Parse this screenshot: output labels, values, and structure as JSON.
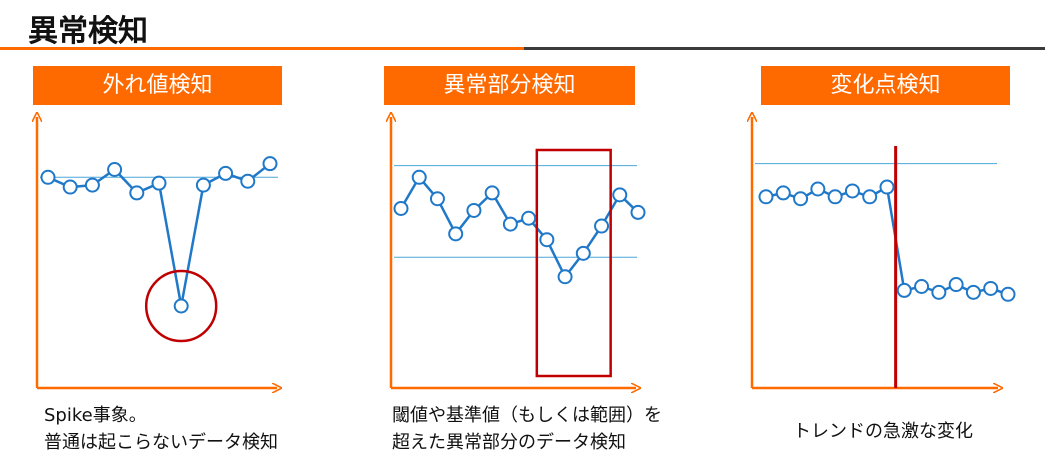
{
  "page": {
    "title": "異常検知",
    "accent_color": "#FF6A00",
    "rule_dark_color": "#3B3B3B"
  },
  "panels": [
    {
      "id": "outlier",
      "header": "外れ値検知",
      "caption_lines": [
        "Spike事象。",
        "普通は起こらないデータ検知"
      ],
      "highlight": "circle"
    },
    {
      "id": "range",
      "header": "異常部分検知",
      "caption_lines": [
        "閾値や基準値（もしくは範囲）を",
        "超えた異常部分のデータ検知"
      ],
      "highlight": "rectangle"
    },
    {
      "id": "changepoint",
      "header": "変化点検知",
      "caption_lines": [
        "トレンドの急激な変化"
      ],
      "highlight": "vertical-line"
    }
  ],
  "chart_data": [
    {
      "type": "line",
      "series": [
        {
          "values": [
            86,
            81,
            82,
            90,
            78,
            83,
            20,
            82,
            88,
            84,
            93
          ]
        }
      ],
      "threshold_lines": [
        86
      ],
      "ylim": [
        0,
        100
      ],
      "highlight_index": 6
    },
    {
      "type": "line",
      "series": [
        {
          "values": [
            70,
            86,
            75,
            57,
            69,
            78,
            62,
            65,
            54,
            35,
            47,
            61,
            77,
            68
          ]
        }
      ],
      "threshold_lines": [
        92,
        45
      ],
      "ylim": [
        0,
        100
      ],
      "highlight_range": [
        7,
        11
      ]
    },
    {
      "type": "line",
      "series": [
        {
          "values": [
            76,
            78,
            75,
            80,
            76,
            79,
            76,
            81,
            28,
            30,
            27,
            31,
            27,
            29,
            26
          ]
        }
      ],
      "threshold_lines": [
        93
      ],
      "ylim": [
        0,
        100
      ],
      "change_after_index": 7
    }
  ],
  "colors": {
    "series": "#1F78C8",
    "threshold": "#4AA8D8",
    "axis": "#FF6A00",
    "highlight": "#C00000"
  }
}
